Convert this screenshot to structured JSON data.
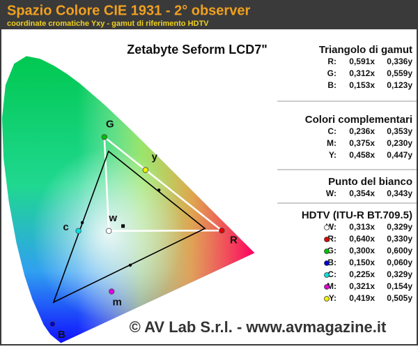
{
  "header": {
    "title": "Spazio Colore CIE 1931 - 2° observer",
    "subtitle": "coordinate cromatiche Yxy - gamut di riferimento HDTV"
  },
  "diagram": {
    "title": "Zetabyte Seform LCD7\"",
    "point_labels": [
      "G",
      "y",
      "w",
      "c",
      "R",
      "m",
      "B"
    ]
  },
  "panels": [
    {
      "title": "Triangolo di gamut",
      "rows": [
        {
          "label": "R:",
          "x": {
            "value": 0.591,
            "label": "0,591x"
          },
          "y": {
            "value": 0.336,
            "label": "0,336y"
          }
        },
        {
          "label": "G:",
          "x": {
            "value": 0.312,
            "label": "0,312x"
          },
          "y": {
            "value": 0.559,
            "label": "0,559y"
          }
        },
        {
          "label": "B:",
          "x": {
            "value": 0.153,
            "label": "0,153x"
          },
          "y": {
            "value": 0.123,
            "label": "0,123y"
          }
        }
      ]
    },
    {
      "title": "Colori complementari",
      "rows": [
        {
          "label": "C:",
          "x": {
            "value": 0.236,
            "label": "0,236x"
          },
          "y": {
            "value": 0.353,
            "label": "0,353y"
          }
        },
        {
          "label": "M:",
          "x": {
            "value": 0.375,
            "label": "0,375x"
          },
          "y": {
            "value": 0.23,
            "label": "0,230y"
          }
        },
        {
          "label": "Y:",
          "x": {
            "value": 0.458,
            "label": "0,458x"
          },
          "y": {
            "value": 0.447,
            "label": "0,447y"
          }
        }
      ]
    },
    {
      "title": "Punto del bianco",
      "rows": [
        {
          "label": "W:",
          "x": {
            "value": 0.354,
            "label": "0,354x"
          },
          "y": {
            "value": 0.343,
            "label": "0,343y"
          }
        }
      ]
    },
    {
      "title": "HDTV (ITU-R BT.709.5)",
      "rows": [
        {
          "label": "W:",
          "color": "#ffffff",
          "x": {
            "value": 0.313,
            "label": "0,313x"
          },
          "y": {
            "value": 0.329,
            "label": "0,329y"
          }
        },
        {
          "label": "R:",
          "color": "#e00000",
          "x": {
            "value": 0.64,
            "label": "0,640x"
          },
          "y": {
            "value": 0.33,
            "label": "0,330y"
          }
        },
        {
          "label": "G:",
          "color": "#00c000",
          "x": {
            "value": 0.3,
            "label": "0,300x"
          },
          "y": {
            "value": 0.6,
            "label": "0,600y"
          }
        },
        {
          "label": "B:",
          "color": "#0000d0",
          "x": {
            "value": 0.15,
            "label": "0,150x"
          },
          "y": {
            "value": 0.06,
            "label": "0,060y"
          }
        },
        {
          "label": "C:",
          "color": "#00e0e0",
          "x": {
            "value": 0.225,
            "label": "0,225x"
          },
          "y": {
            "value": 0.329,
            "label": "0,329y"
          }
        },
        {
          "label": "M:",
          "color": "#e000e0",
          "x": {
            "value": 0.321,
            "label": "0,321x"
          },
          "y": {
            "value": 0.154,
            "label": "0,154y"
          }
        },
        {
          "label": "Y:",
          "color": "#f0f000",
          "x": {
            "value": 0.419,
            "label": "0,419x"
          },
          "y": {
            "value": 0.505,
            "label": "0,505y"
          }
        }
      ]
    }
  ],
  "footer": "© AV Lab S.r.l. - www.avmagazine.it"
}
